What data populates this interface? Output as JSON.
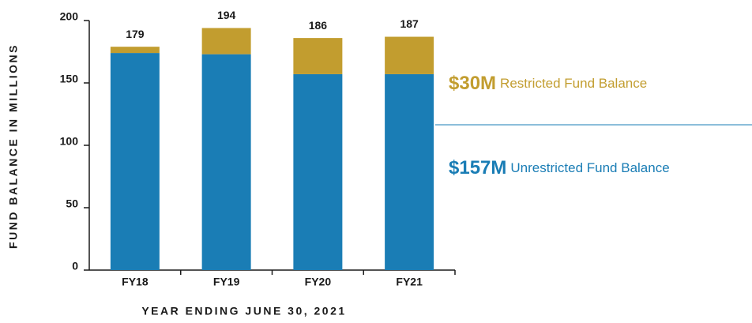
{
  "chart_data": {
    "type": "stacked_bar",
    "x_label": "YEAR ENDING JUNE 30, 2021",
    "y_label": "FUND BALANCE IN MILLIONS",
    "categories": [
      "FY18",
      "FY19",
      "FY20",
      "FY21"
    ],
    "series": [
      {
        "name": "Unrestricted",
        "color": "#1a7db5",
        "values": [
          174,
          173,
          157,
          157
        ]
      },
      {
        "name": "Restricted",
        "color": "#c29d2f",
        "values": [
          5,
          21,
          29,
          30
        ]
      }
    ],
    "totals": [
      179,
      194,
      186,
      187
    ],
    "ylim": [
      0,
      200
    ],
    "yticks": [
      0,
      50,
      100,
      150,
      200
    ],
    "annotations": [
      {
        "amount": "$30M",
        "text": "Restricted Fund Balance",
        "color": "#c29d2f"
      },
      {
        "amount": "$157M",
        "text": "Unrestricted Fund Balance",
        "color": "#1a7db5"
      }
    ]
  }
}
